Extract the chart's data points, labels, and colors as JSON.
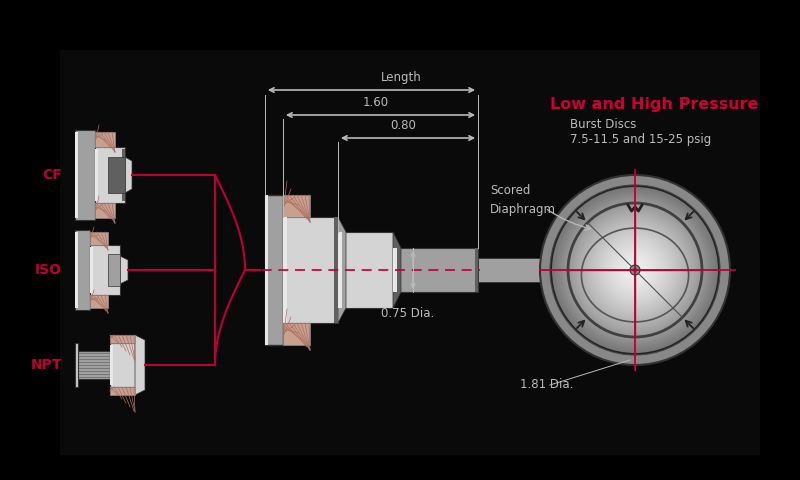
{
  "bg_color": "#000000",
  "title_color": "#cc0033",
  "dim_color": "#bbbbbb",
  "red_line_color": "#bb0033",
  "label_CF": "CF",
  "label_ISO": "ISO",
  "label_NPT": "NPT",
  "label_length": "Length",
  "label_160": "1.60",
  "label_080": "0.80",
  "label_075": "0.75 Dia.",
  "label_181": "1.81 Dia.",
  "label_scored": "Scored\nDiaphragm",
  "title_line1": "Low and High Pressure",
  "title_line2": "Burst Discs",
  "title_line3": "7.5-11.5 and 15-25 psig",
  "steel_light": "#d4d4d4",
  "steel_mid": "#a0a0a0",
  "steel_dark": "#606060",
  "steel_shine": "#e8e8e8",
  "copper_color": "#c8a090",
  "figsize": [
    8.0,
    4.8
  ],
  "dpi": 100,
  "bg_rect_color": "#111111",
  "white": "#ffffff"
}
